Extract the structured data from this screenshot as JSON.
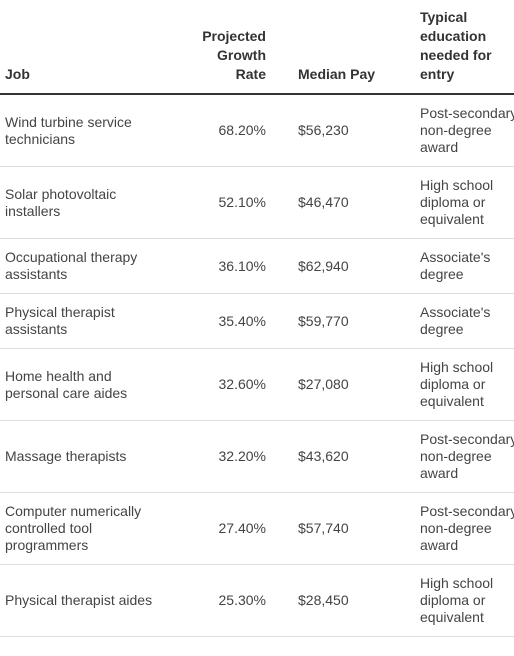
{
  "table": {
    "headers": [
      "Job",
      "Projected Growth Rate",
      "Median Pay",
      "Typical education needed for entry"
    ],
    "rows": [
      [
        "Wind turbine service technicians",
        "68.20%",
        "$56,230",
        "Post-secondary non-degree award"
      ],
      [
        "Solar photovoltaic installers",
        "52.10%",
        "$46,470",
        "High school diploma or equivalent"
      ],
      [
        "Occupational therapy assistants",
        "36.10%",
        "$62,940",
        "Associate's degree"
      ],
      [
        "Physical therapist assistants",
        "35.40%",
        "$59,770",
        "Associate's degree"
      ],
      [
        "Home health and personal care aides",
        "32.60%",
        "$27,080",
        "High school diploma or equivalent"
      ],
      [
        "Massage therapists",
        "32.20%",
        "$43,620",
        "Post-secondary non-degree award"
      ],
      [
        "Computer numerically controlled tool programmers",
        "27.40%",
        "$57,740",
        "Post-secondary non-degree award"
      ],
      [
        "Physical therapist aides",
        "25.30%",
        "$28,450",
        "High school diploma or equivalent"
      ]
    ]
  }
}
